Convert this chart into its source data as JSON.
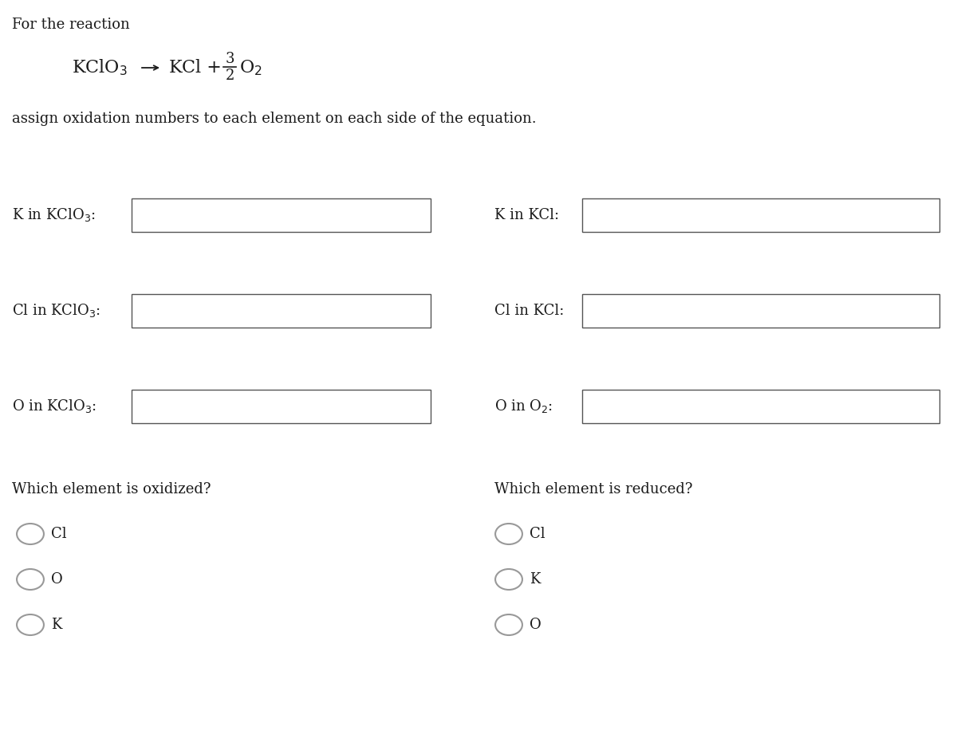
{
  "title_text": "For the reaction",
  "instruction_text": "assign oxidation numbers to each element on each side of the equation.",
  "left_labels": [
    "K in KClO$_3$:",
    "Cl in KClO$_3$:",
    "O in KClO$_3$:"
  ],
  "right_labels": [
    "K in KCl:",
    "Cl in KCl:",
    "O in O$_2$:"
  ],
  "oxidized_question": "Which element is oxidized?",
  "reduced_question": "Which element is reduced?",
  "oxidized_choices": [
    "Cl",
    "O",
    "K"
  ],
  "reduced_choices": [
    "Cl",
    "K",
    "O"
  ],
  "bg_color": "#ffffff",
  "text_color": "#1a1a1a",
  "box_edge_color": "#555555",
  "circle_color": "#999999",
  "font_size_title": 13,
  "font_size_instruction": 13,
  "font_size_reaction": 16,
  "font_size_label": 13,
  "font_size_question": 13,
  "font_size_choice": 13,
  "fig_width": 12.0,
  "fig_height": 9.21
}
